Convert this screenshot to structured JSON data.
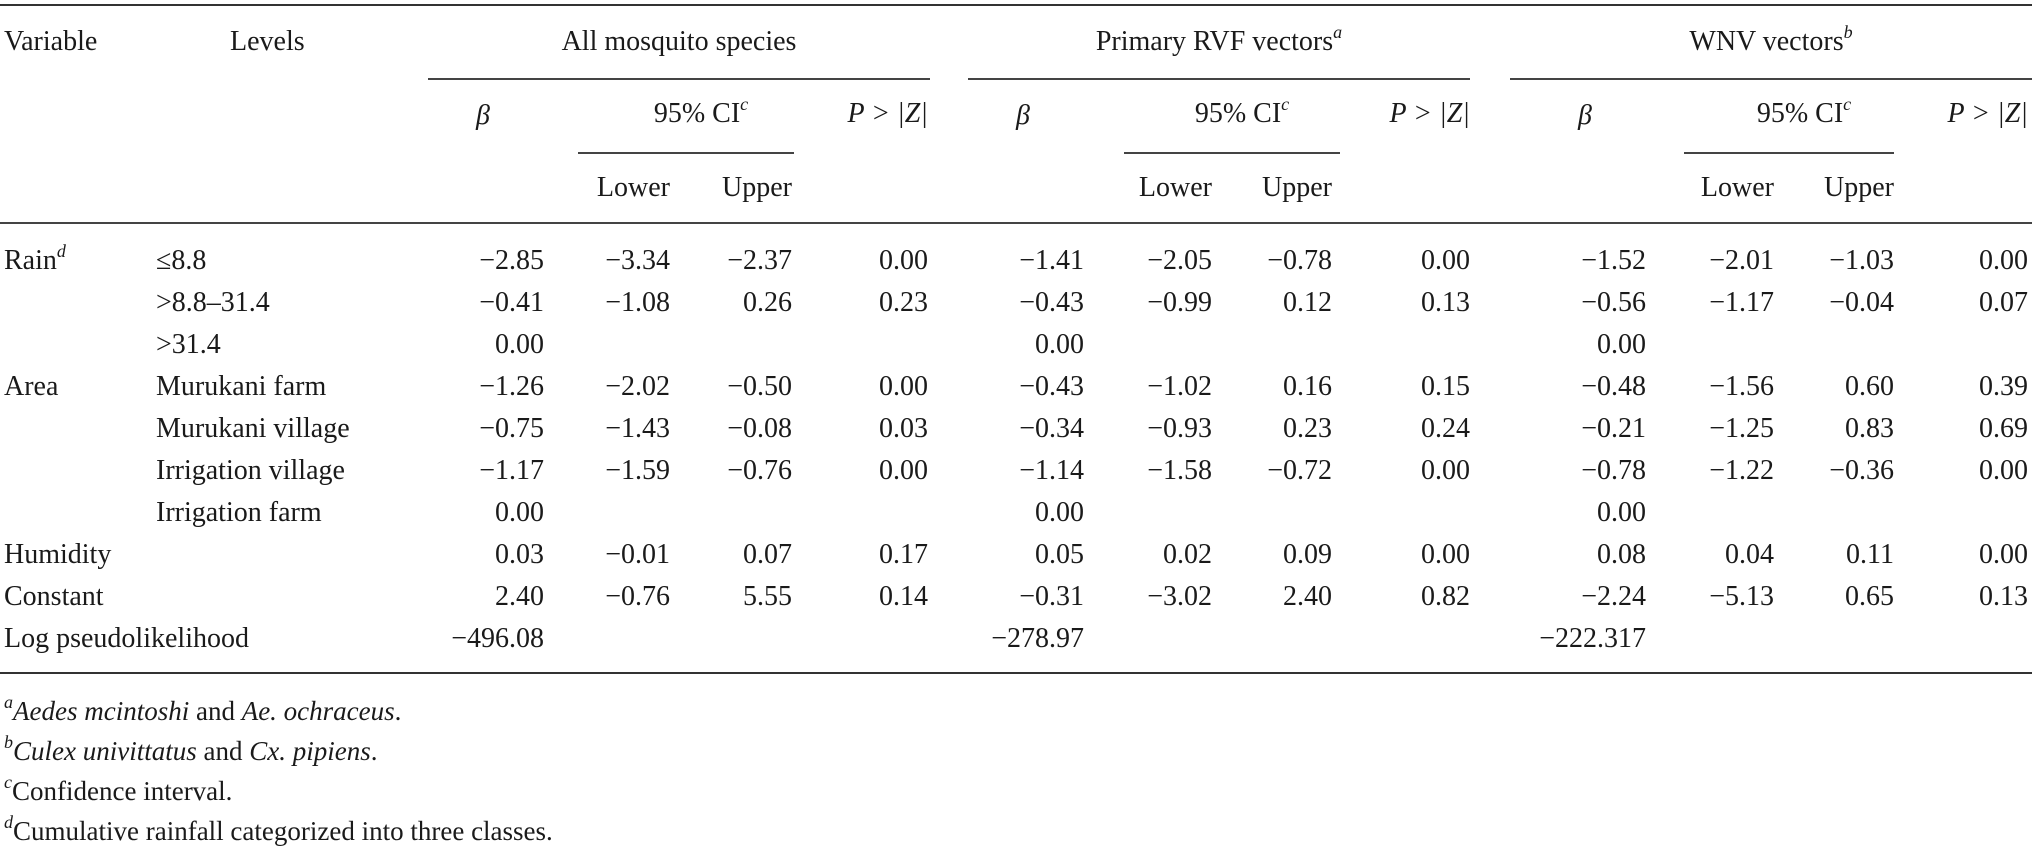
{
  "table": {
    "headers": {
      "variable": "Variable",
      "levels": "Levels",
      "groups": [
        {
          "label": "All mosquito species",
          "sup": ""
        },
        {
          "label": "Primary RVF vectors",
          "sup": "a"
        },
        {
          "label": "WNV vectors",
          "sup": "b"
        }
      ],
      "beta": "β",
      "ci": "95% CI",
      "ci_sup": "c",
      "p": "P > |Z|",
      "lower": "Lower",
      "upper": "Upper"
    },
    "rows": [
      {
        "variable": "Rain",
        "variable_sup": "d",
        "level": "≤8.8",
        "values": [
          "−2.85",
          "−3.34",
          "−2.37",
          "0.00",
          "−1.41",
          "−2.05",
          "−0.78",
          "0.00",
          "−1.52",
          "−2.01",
          "−1.03",
          "0.00"
        ]
      },
      {
        "variable": "",
        "variable_sup": "",
        "level": ">8.8–31.4",
        "values": [
          "−0.41",
          "−1.08",
          "0.26",
          "0.23",
          "−0.43",
          "−0.99",
          "0.12",
          "0.13",
          "−0.56",
          "−1.17",
          "−0.04",
          "0.07"
        ]
      },
      {
        "variable": "",
        "variable_sup": "",
        "level": ">31.4",
        "values": [
          "0.00",
          "",
          "",
          "",
          "0.00",
          "",
          "",
          "",
          "0.00",
          "",
          "",
          ""
        ]
      },
      {
        "variable": "Area",
        "variable_sup": "",
        "level": "Murukani farm",
        "values": [
          "−1.26",
          "−2.02",
          "−0.50",
          "0.00",
          "−0.43",
          "−1.02",
          "0.16",
          "0.15",
          "−0.48",
          "−1.56",
          "0.60",
          "0.39"
        ]
      },
      {
        "variable": "",
        "variable_sup": "",
        "level": "Murukani village",
        "values": [
          "−0.75",
          "−1.43",
          "−0.08",
          "0.03",
          "−0.34",
          "−0.93",
          "0.23",
          "0.24",
          "−0.21",
          "−1.25",
          "0.83",
          "0.69"
        ]
      },
      {
        "variable": "",
        "variable_sup": "",
        "level": "Irrigation village",
        "values": [
          "−1.17",
          "−1.59",
          "−0.76",
          "0.00",
          "−1.14",
          "−1.58",
          "−0.72",
          "0.00",
          "−0.78",
          "−1.22",
          "−0.36",
          "0.00"
        ]
      },
      {
        "variable": "",
        "variable_sup": "",
        "level": "Irrigation farm",
        "values": [
          "0.00",
          "",
          "",
          "",
          "0.00",
          "",
          "",
          "",
          "0.00",
          "",
          "",
          ""
        ]
      },
      {
        "variable": "Humidity",
        "variable_sup": "",
        "level": "",
        "values": [
          "0.03",
          "−0.01",
          "0.07",
          "0.17",
          "0.05",
          "0.02",
          "0.09",
          "0.00",
          "0.08",
          "0.04",
          "0.11",
          "0.00"
        ]
      },
      {
        "variable": "Constant",
        "variable_sup": "",
        "level": "",
        "values": [
          "2.40",
          "−0.76",
          "5.55",
          "0.14",
          "−0.31",
          "−3.02",
          "2.40",
          "0.82",
          "−2.24",
          "−5.13",
          "0.65",
          "0.13"
        ]
      },
      {
        "variable": "Log pseudolikelihood",
        "variable_sup": "",
        "level": "",
        "values": [
          "−496.08",
          "",
          "",
          "",
          "−278.97",
          "",
          "",
          "",
          "−222.317",
          "",
          "",
          ""
        ]
      }
    ]
  },
  "footnotes": [
    {
      "mark": "a",
      "parts": [
        {
          "text": "Aedes mcintoshi",
          "italic": true
        },
        {
          "text": " and ",
          "italic": false
        },
        {
          "text": "Ae. ochraceus",
          "italic": true
        },
        {
          "text": ".",
          "italic": false
        }
      ]
    },
    {
      "mark": "b",
      "parts": [
        {
          "text": "Culex univittatus",
          "italic": true
        },
        {
          "text": " and ",
          "italic": false
        },
        {
          "text": "Cx. pipiens",
          "italic": true
        },
        {
          "text": ".",
          "italic": false
        }
      ]
    },
    {
      "mark": "c",
      "parts": [
        {
          "text": "Confidence interval.",
          "italic": false
        }
      ]
    },
    {
      "mark": "d",
      "parts": [
        {
          "text": "Cumulative rainfall categorized into three classes.",
          "italic": false
        }
      ]
    }
  ]
}
